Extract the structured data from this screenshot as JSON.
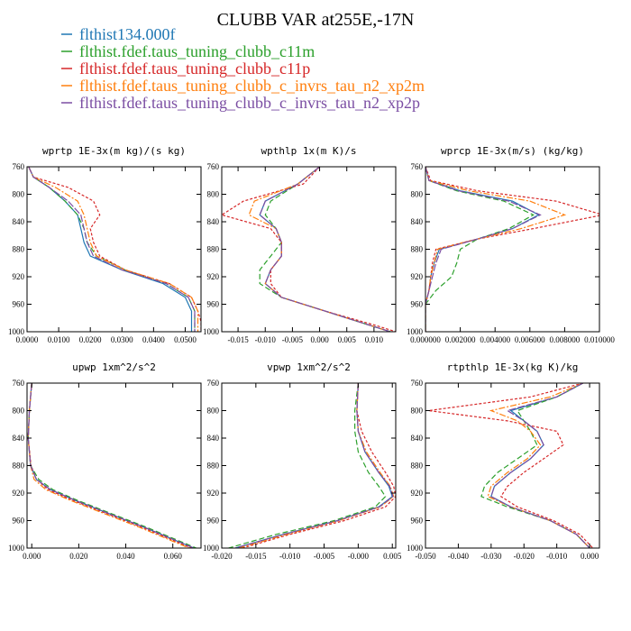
{
  "title": "CLUBB VAR at255E,-17N",
  "legend": [
    {
      "label": "flthist134.000f",
      "color": "#1f77b4"
    },
    {
      "label": "flthist.fdef.taus_tuning_clubb_c11m",
      "color": "#2ca02c"
    },
    {
      "label": "flthist.fdef.taus_tuning_clubb_c11p",
      "color": "#d62728"
    },
    {
      "label": "flthist.fdef.taus_tuning_clubb_c_invrs_tau_n2_xp2m",
      "color": "#ff7f0e"
    },
    {
      "label": "flthist.fdef.taus_tuning_clubb_c_invrs_tau_n2_xp2p",
      "color": "#7b4ea3"
    }
  ],
  "chart_data": [
    {
      "type": "line",
      "title": "wprtp  1E-3x(m kg)/(s kg)",
      "xlim": [
        0,
        0.055
      ],
      "ylim": [
        760,
        1000
      ],
      "y_reversed": true,
      "xticks": [
        "0.0000",
        "0.0100",
        "0.0200",
        "0.0300",
        "0.0400",
        "0.0500"
      ],
      "xtick_values": [
        0,
        0.01,
        0.02,
        0.03,
        0.04,
        0.05
      ],
      "yticks": [
        760,
        800,
        840,
        880,
        920,
        960,
        1000
      ],
      "y": [
        760,
        775,
        790,
        810,
        830,
        850,
        870,
        890,
        910,
        930,
        950,
        970,
        985,
        1000
      ],
      "series": [
        {
          "name": "flthist134.000f",
          "values": [
            0.0005,
            0.002,
            0.007,
            0.012,
            0.016,
            0.017,
            0.018,
            0.02,
            0.03,
            0.043,
            0.05,
            0.052,
            0.052,
            0.052
          ]
        },
        {
          "name": "flthist.fdef.taus_tuning_clubb_c11m",
          "values": [
            0.0005,
            0.002,
            0.007,
            0.012,
            0.016,
            0.018,
            0.019,
            0.022,
            0.031,
            0.044,
            0.051,
            0.053,
            0.053,
            0.053
          ]
        },
        {
          "name": "flthist.fdef.taus_tuning_clubb_c11p",
          "values": [
            0.0005,
            0.002,
            0.013,
            0.021,
            0.023,
            0.02,
            0.021,
            0.023,
            0.031,
            0.045,
            0.052,
            0.054,
            0.055,
            0.055
          ]
        },
        {
          "name": "flthist.fdef.taus_tuning_clubb_c_invrs_tau_n2_xp2m",
          "values": [
            0.0005,
            0.002,
            0.009,
            0.016,
            0.018,
            0.019,
            0.02,
            0.022,
            0.031,
            0.045,
            0.052,
            0.054,
            0.054,
            0.054
          ]
        },
        {
          "name": "flthist.fdef.taus_tuning_clubb_c_invrs_tau_n2_xp2p",
          "values": [
            0.0005,
            0.002,
            0.007,
            0.013,
            0.017,
            0.018,
            0.019,
            0.021,
            0.03,
            0.044,
            0.051,
            0.053,
            0.053,
            0.053
          ]
        }
      ]
    },
    {
      "type": "line",
      "title": "wpthlp  1x(m K)/s",
      "xlim": [
        -0.018,
        0.014
      ],
      "ylim": [
        760,
        1000
      ],
      "y_reversed": true,
      "xticks": [
        "-0.015",
        "-0.010",
        "-0.005",
        "0.000",
        "0.005",
        "0.010"
      ],
      "xtick_values": [
        -0.015,
        -0.01,
        -0.005,
        0,
        0.005,
        0.01
      ],
      "yticks": [
        760,
        800,
        840,
        880,
        920,
        960,
        1000
      ],
      "y": [
        760,
        785,
        810,
        830,
        850,
        870,
        890,
        910,
        930,
        950,
        970,
        990,
        1000
      ],
      "series": [
        {
          "name": "flthist134.000f",
          "values": [
            0.0,
            -0.004,
            -0.01,
            -0.011,
            -0.008,
            -0.007,
            -0.007,
            -0.009,
            -0.01,
            -0.007,
            0.001,
            0.009,
            0.013
          ]
        },
        {
          "name": "flthist.fdef.taus_tuning_clubb_c11m",
          "values": [
            0.0,
            -0.004,
            -0.009,
            -0.01,
            -0.008,
            -0.007,
            -0.009,
            -0.011,
            -0.011,
            -0.007,
            0.001,
            0.009,
            0.013
          ]
        },
        {
          "name": "flthist.fdef.taus_tuning_clubb_c11p",
          "values": [
            0.0,
            -0.003,
            -0.014,
            -0.018,
            -0.009,
            -0.007,
            -0.007,
            -0.009,
            -0.009,
            -0.007,
            0.001,
            0.01,
            0.014
          ]
        },
        {
          "name": "flthist.fdef.taus_tuning_clubb_c_invrs_tau_n2_xp2m",
          "values": [
            0.0,
            -0.004,
            -0.012,
            -0.013,
            -0.008,
            -0.007,
            -0.007,
            -0.009,
            -0.01,
            -0.007,
            0.001,
            0.009,
            0.013
          ]
        },
        {
          "name": "flthist.fdef.taus_tuning_clubb_c_invrs_tau_n2_xp2p",
          "values": [
            0.0,
            -0.004,
            -0.01,
            -0.011,
            -0.008,
            -0.007,
            -0.007,
            -0.009,
            -0.01,
            -0.007,
            0.001,
            0.009,
            0.013
          ]
        }
      ]
    },
    {
      "type": "line",
      "title": "wprcp  1E-3x(m/s) (kg/kg)",
      "xlim": [
        0,
        0.01
      ],
      "ylim": [
        760,
        1000
      ],
      "y_reversed": true,
      "xticks": [
        "0.000000",
        "0.002000",
        "0.004000",
        "0.006000",
        "0.008000",
        "0.010000"
      ],
      "xtick_values": [
        0,
        0.002,
        0.004,
        0.006,
        0.008,
        0.01
      ],
      "yticks": [
        760,
        800,
        840,
        880,
        920,
        960,
        1000
      ],
      "y": [
        760,
        780,
        795,
        810,
        830,
        850,
        865,
        880,
        900,
        920,
        940,
        960,
        980,
        1000
      ],
      "series": [
        {
          "name": "flthist134.000f",
          "values": [
            0.0,
            0.0002,
            0.002,
            0.005,
            0.0065,
            0.005,
            0.003,
            0.0008,
            0.0005,
            0.0003,
            0.0002,
            0.0,
            0.0,
            0.0
          ]
        },
        {
          "name": "flthist.fdef.taus_tuning_clubb_c11m",
          "values": [
            0.0,
            0.0002,
            0.0018,
            0.0045,
            0.0062,
            0.0048,
            0.003,
            0.002,
            0.0018,
            0.0015,
            0.0006,
            0.0,
            0.0,
            0.0
          ]
        },
        {
          "name": "flthist.fdef.taus_tuning_clubb_c11p",
          "values": [
            0.0,
            0.0003,
            0.003,
            0.0075,
            0.0102,
            0.0062,
            0.003,
            0.0006,
            0.0004,
            0.0003,
            0.0002,
            0.0,
            0.0,
            0.0
          ]
        },
        {
          "name": "flthist.fdef.taus_tuning_clubb_c_invrs_tau_n2_xp2m",
          "values": [
            0.0,
            0.0002,
            0.0025,
            0.006,
            0.008,
            0.0055,
            0.003,
            0.0007,
            0.0005,
            0.0003,
            0.0002,
            0.0,
            0.0,
            0.0
          ]
        },
        {
          "name": "flthist.fdef.taus_tuning_clubb_c_invrs_tau_n2_xp2p",
          "values": [
            0.0,
            0.0002,
            0.0019,
            0.0048,
            0.0066,
            0.005,
            0.003,
            0.0009,
            0.0006,
            0.0004,
            0.0002,
            0.0,
            0.0,
            0.0
          ]
        }
      ]
    },
    {
      "type": "line",
      "title": "upwp  1xm^2/s^2",
      "xlim": [
        -0.002,
        0.072
      ],
      "ylim": [
        760,
        1000
      ],
      "y_reversed": true,
      "xticks": [
        "0.000",
        "0.020",
        "0.040",
        "0.060"
      ],
      "xtick_values": [
        0,
        0.02,
        0.04,
        0.06
      ],
      "yticks": [
        760,
        800,
        840,
        880,
        920,
        960,
        1000
      ],
      "y": [
        760,
        800,
        840,
        880,
        900,
        915,
        930,
        950,
        970,
        990,
        1000
      ],
      "series": [
        {
          "name": "flthist134.000f",
          "values": [
            0.0,
            -0.001,
            -0.0015,
            -0.0005,
            0.002,
            0.008,
            0.018,
            0.033,
            0.048,
            0.062,
            0.069
          ]
        },
        {
          "name": "flthist.fdef.taus_tuning_clubb_c11m",
          "values": [
            0.0,
            -0.001,
            -0.0015,
            -0.0005,
            0.003,
            0.009,
            0.019,
            0.034,
            0.049,
            0.063,
            0.07
          ]
        },
        {
          "name": "flthist.fdef.taus_tuning_clubb_c11p",
          "values": [
            0.0,
            -0.001,
            -0.0015,
            -0.0003,
            0.002,
            0.007,
            0.017,
            0.032,
            0.047,
            0.061,
            0.068
          ]
        },
        {
          "name": "flthist.fdef.taus_tuning_clubb_c_invrs_tau_n2_xp2m",
          "values": [
            0.0,
            -0.001,
            -0.0015,
            -0.0005,
            0.001,
            0.006,
            0.016,
            0.031,
            0.046,
            0.06,
            0.067
          ]
        },
        {
          "name": "flthist.fdef.taus_tuning_clubb_c_invrs_tau_n2_xp2p",
          "values": [
            0.0,
            -0.001,
            -0.0015,
            -0.0005,
            0.002,
            0.008,
            0.018,
            0.033,
            0.048,
            0.062,
            0.069
          ]
        }
      ]
    },
    {
      "type": "line",
      "title": "vpwp  1xm^2/s^2",
      "xlim": [
        -0.02,
        0.0055
      ],
      "ylim": [
        760,
        1000
      ],
      "y_reversed": true,
      "xticks": [
        "-0.020",
        "-0.015",
        "-0.010",
        "-0.005",
        "-0.000",
        "0.005"
      ],
      "xtick_values": [
        -0.02,
        -0.015,
        -0.01,
        -0.005,
        0,
        0.005
      ],
      "yticks": [
        760,
        800,
        840,
        880,
        920,
        960,
        1000
      ],
      "y": [
        760,
        800,
        830,
        860,
        890,
        910,
        925,
        940,
        960,
        980,
        1000
      ],
      "series": [
        {
          "name": "flthist134.000f",
          "values": [
            0.0,
            -0.0002,
            0.0,
            0.001,
            0.003,
            0.0045,
            0.005,
            0.003,
            -0.003,
            -0.011,
            -0.018
          ]
        },
        {
          "name": "flthist.fdef.taus_tuning_clubb_c11m",
          "values": [
            0.0,
            -0.0005,
            -0.0005,
            0.0,
            0.0015,
            0.003,
            0.004,
            0.0025,
            -0.0035,
            -0.012,
            -0.019
          ]
        },
        {
          "name": "flthist.fdef.taus_tuning_clubb_c11p",
          "values": [
            0.0,
            -0.0002,
            0.0005,
            0.002,
            0.004,
            0.0052,
            0.0055,
            0.004,
            -0.002,
            -0.01,
            -0.017
          ]
        },
        {
          "name": "flthist.fdef.taus_tuning_clubb_c_invrs_tau_n2_xp2m",
          "values": [
            0.0,
            -0.0002,
            0.0,
            0.0012,
            0.0032,
            0.0047,
            0.0052,
            0.0032,
            -0.0028,
            -0.0105,
            -0.0175
          ]
        },
        {
          "name": "flthist.fdef.taus_tuning_clubb_c_invrs_tau_n2_xp2p",
          "values": [
            0.0,
            -0.0002,
            0.0,
            0.001,
            0.003,
            0.0046,
            0.0051,
            0.0031,
            -0.003,
            -0.011,
            -0.018
          ]
        }
      ]
    },
    {
      "type": "line",
      "title": "rtpthlp  1E-3x(kg K)/kg",
      "xlim": [
        -0.05,
        0.003
      ],
      "ylim": [
        760,
        1000
      ],
      "y_reversed": true,
      "xticks": [
        "-0.050",
        "-0.040",
        "-0.030",
        "-0.020",
        "-0.010",
        "0.000"
      ],
      "xtick_values": [
        -0.05,
        -0.04,
        -0.03,
        -0.02,
        -0.01,
        0
      ],
      "yticks": [
        760,
        800,
        840,
        880,
        920,
        960,
        1000
      ],
      "y": [
        760,
        780,
        800,
        815,
        830,
        850,
        870,
        890,
        910,
        925,
        940,
        960,
        980,
        1000
      ],
      "series": [
        {
          "name": "flthist134.000f",
          "values": [
            -0.002,
            -0.01,
            -0.024,
            -0.02,
            -0.016,
            -0.014,
            -0.018,
            -0.024,
            -0.029,
            -0.03,
            -0.024,
            -0.012,
            -0.004,
            0.0
          ]
        },
        {
          "name": "flthist.fdef.taus_tuning_clubb_c11m",
          "values": [
            -0.002,
            -0.01,
            -0.022,
            -0.02,
            -0.018,
            -0.016,
            -0.022,
            -0.028,
            -0.032,
            -0.033,
            -0.025,
            -0.012,
            -0.004,
            0.0
          ]
        },
        {
          "name": "flthist.fdef.taus_tuning_clubb_c11p",
          "values": [
            -0.002,
            -0.018,
            -0.049,
            -0.025,
            -0.01,
            -0.008,
            -0.014,
            -0.02,
            -0.025,
            -0.027,
            -0.022,
            -0.011,
            -0.003,
            0.001
          ]
        },
        {
          "name": "flthist.fdef.taus_tuning_clubb_c_invrs_tau_n2_xp2m",
          "values": [
            -0.002,
            -0.012,
            -0.03,
            -0.022,
            -0.018,
            -0.015,
            -0.019,
            -0.025,
            -0.03,
            -0.031,
            -0.024,
            -0.012,
            -0.004,
            0.0
          ]
        },
        {
          "name": "flthist.fdef.taus_tuning_clubb_c_invrs_tau_n2_xp2p",
          "values": [
            -0.002,
            -0.01,
            -0.025,
            -0.02,
            -0.016,
            -0.014,
            -0.018,
            -0.024,
            -0.029,
            -0.03,
            -0.024,
            -0.012,
            -0.004,
            0.0
          ]
        }
      ]
    }
  ]
}
